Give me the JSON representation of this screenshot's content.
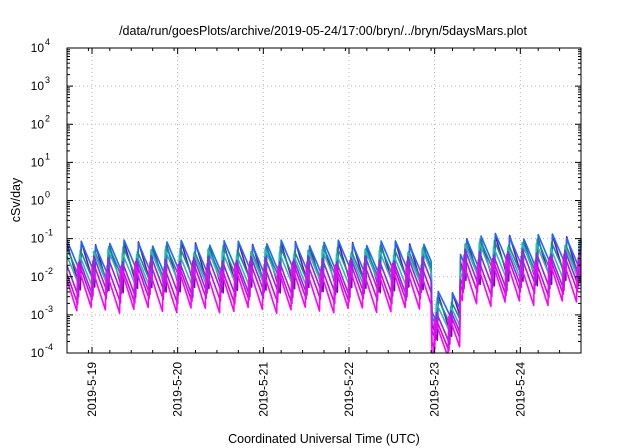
{
  "chart_data": {
    "type": "line",
    "title": "/data/run/goesPlots/archive/2019-05-24/17:00/bryn/../bryn/5daysMars.plot",
    "xlabel": "Coordinated Universal Time (UTC)",
    "ylabel": "cSv/day",
    "y_scale": "log",
    "ylim": [
      0.0001,
      10000
    ],
    "y_ticks": [
      {
        "base": "10",
        "exp": "-4"
      },
      {
        "base": "10",
        "exp": "-3"
      },
      {
        "base": "10",
        "exp": "-2"
      },
      {
        "base": "10",
        "exp": "-1"
      },
      {
        "base": "10",
        "exp": "0"
      },
      {
        "base": "10",
        "exp": "1"
      },
      {
        "base": "10",
        "exp": "2"
      },
      {
        "base": "10",
        "exp": "3"
      },
      {
        "base": "10",
        "exp": "4"
      }
    ],
    "x_start": "2019-05-18 17:00",
    "x_end": "2019-05-24 17:00",
    "x_ticks": [
      "2019-5-19",
      "2019-5-20",
      "2019-5-21",
      "2019-5-22",
      "2019-5-23",
      "2019-5-24"
    ],
    "grid": true,
    "sawtooth": {
      "cycle_hours": 4,
      "drop_hours": [
        2.4,
        53.6,
        69.4
      ],
      "gap": {
        "start_hours": 102.2,
        "end_hours": 110.1,
        "scale": 0.045
      },
      "late_boost": {
        "start_hours": 110.1,
        "factor": 1.5
      }
    },
    "series": [
      {
        "color": "#7a0aa8",
        "peak": 0.072,
        "trough": 0.0038
      },
      {
        "color": "#1a6bff",
        "peak": 0.085,
        "trough": 0.011
      },
      {
        "color": "#0f8f8f",
        "peak": 0.058,
        "trough": 0.0075
      },
      {
        "color": "#2db8b0",
        "peak": 0.046,
        "trough": 0.0055
      },
      {
        "color": "#8a2be2",
        "peak": 0.034,
        "trough": 0.0034
      },
      {
        "color": "#c40fd8",
        "peak": 0.024,
        "trough": 0.0022
      },
      {
        "color": "#ff00ff",
        "peak": 0.018,
        "trough": 0.0012
      }
    ]
  }
}
